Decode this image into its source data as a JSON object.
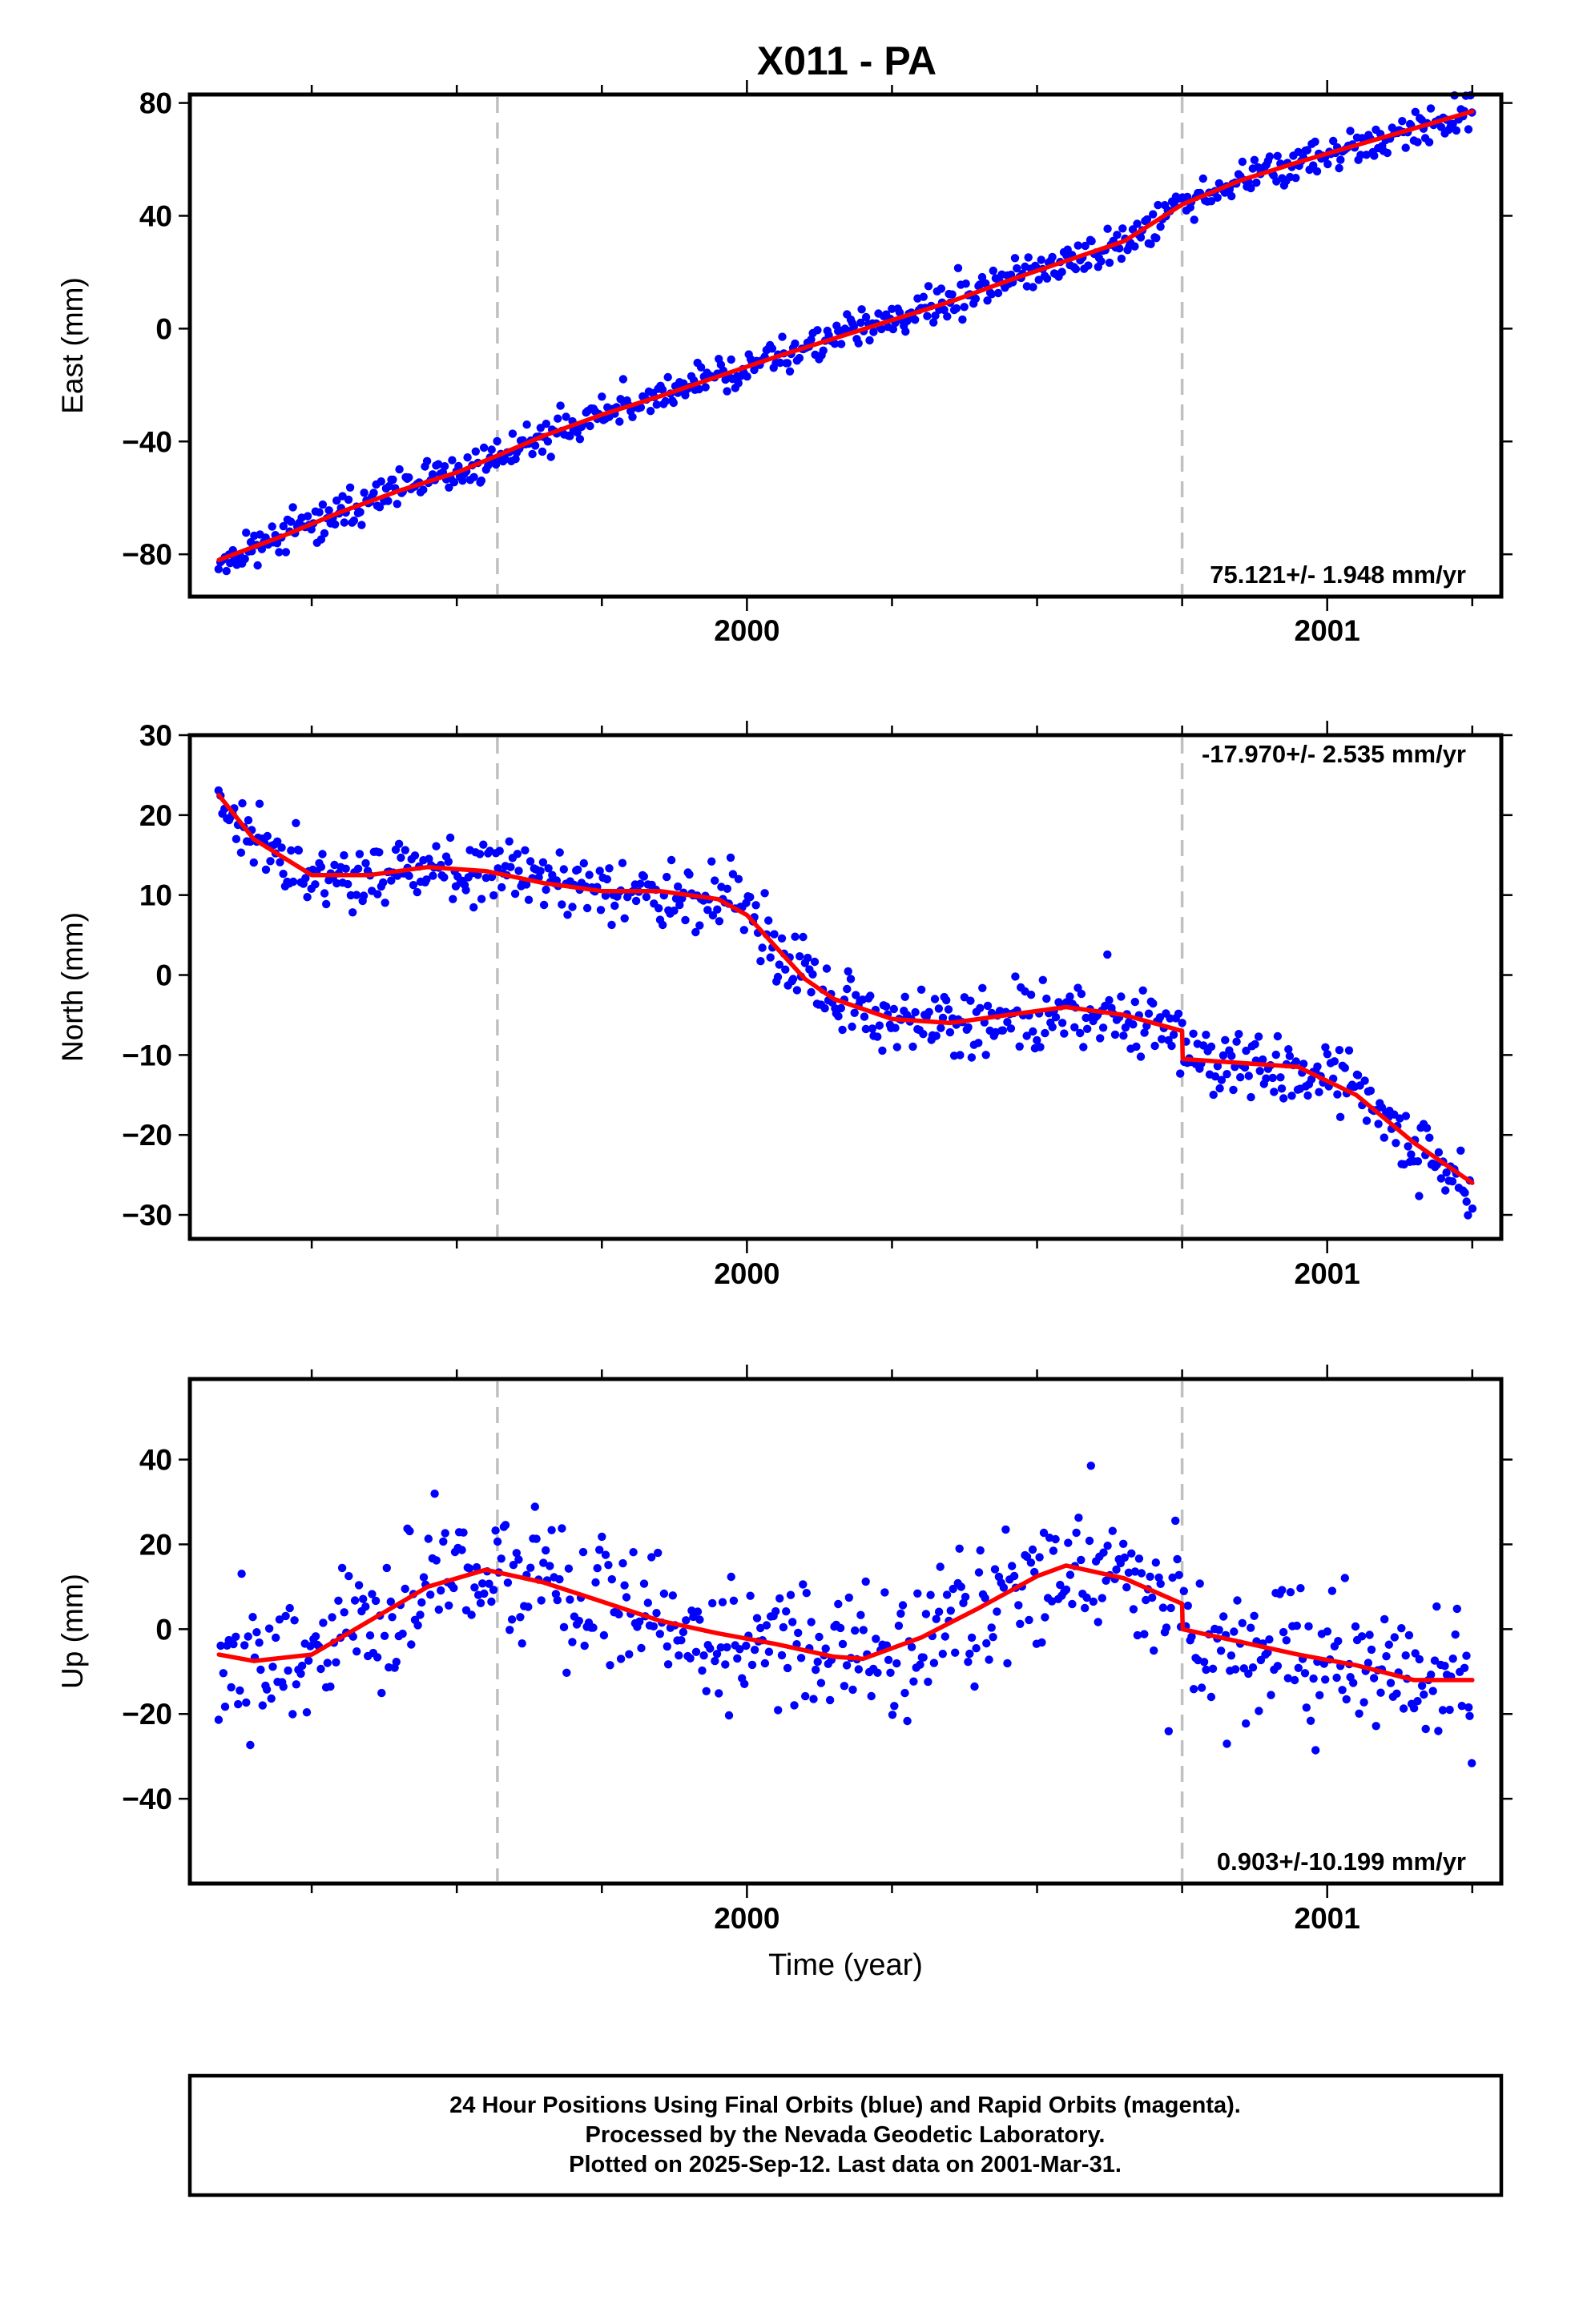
{
  "title": "X011 - PA",
  "footer": {
    "lines": [
      "24 Hour Positions Using Final Orbits (blue) and Rapid Orbits (magenta).",
      "Processed by the Nevada Geodetic Laboratory.",
      "Plotted on 2025-Sep-12. Last data on 2001-Mar-31."
    ]
  },
  "colors": {
    "points": "#0000ff",
    "model": "#ff0000",
    "events": "#c0c0c0",
    "axes": "#000000"
  },
  "chart_data": [
    {
      "type": "scatter",
      "title": "X011 - PA",
      "ylabel": "East (mm)",
      "xlabel": "",
      "xlim": [
        1999.04,
        2001.3
      ],
      "ylim": [
        -95,
        83
      ],
      "xticks": [
        {
          "v": 2000,
          "label": "2000"
        },
        {
          "v": 2001,
          "label": "2001"
        }
      ],
      "yticks": [
        {
          "v": 80,
          "label": "80"
        },
        {
          "v": 40,
          "label": "40"
        },
        {
          "v": 0,
          "label": "0"
        },
        {
          "v": -40,
          "label": "−40"
        },
        {
          "v": -80,
          "label": "−80"
        }
      ],
      "event_lines": [
        1999.57,
        2000.75
      ],
      "rate_label": "75.121+/- 1.948 mm/yr",
      "rate_pos": "bottom-right",
      "model": {
        "x": [
          1999.09,
          1999.2,
          1999.3,
          1999.4,
          1999.5,
          1999.57,
          1999.65,
          1999.75,
          1999.85,
          1999.95,
          2000.05,
          2000.15,
          2000.25,
          2000.35,
          2000.45,
          2000.55,
          2000.65,
          2000.75,
          2000.85,
          2000.95,
          2001.05,
          2001.15,
          2001.25
        ],
        "y": [
          -82,
          -73.5,
          -65,
          -57.5,
          -51,
          -45,
          -38,
          -30.5,
          -24,
          -17,
          -10,
          -3.5,
          3,
          9.5,
          17,
          24,
          31,
          44,
          52.5,
          59,
          65,
          71,
          77
        ]
      },
      "points": {
        "count": 640,
        "x_start": 1999.09,
        "x_end": 2001.25,
        "scatter": 3.5,
        "outlier_rate": 0.03,
        "outlier_scale": 10,
        "seed": 11
      }
    },
    {
      "type": "scatter",
      "title": "",
      "ylabel": "North (mm)",
      "xlabel": "",
      "xlim": [
        1999.04,
        2001.3
      ],
      "ylim": [
        -33,
        30
      ],
      "xticks": [
        {
          "v": 2000,
          "label": "2000"
        },
        {
          "v": 2001,
          "label": "2001"
        }
      ],
      "yticks": [
        {
          "v": 30,
          "label": "30"
        },
        {
          "v": 20,
          "label": "20"
        },
        {
          "v": 10,
          "label": "10"
        },
        {
          "v": 0,
          "label": "0"
        },
        {
          "v": -10,
          "label": "−10"
        },
        {
          "v": -20,
          "label": "−20"
        },
        {
          "v": -30,
          "label": "−30"
        }
      ],
      "event_lines": [
        1999.57,
        2000.75
      ],
      "rate_label": "-17.970+/- 2.535 mm/yr",
      "rate_pos": "top-right",
      "model": {
        "x": [
          1999.09,
          1999.15,
          1999.25,
          1999.35,
          1999.45,
          1999.55,
          1999.65,
          1999.75,
          1999.85,
          1999.95,
          2000.0,
          2000.05,
          2000.1,
          2000.15,
          2000.25,
          2000.35,
          2000.45,
          2000.55,
          2000.65,
          2000.75,
          2000.751,
          2000.85,
          2000.95,
          2001.05,
          2001.15,
          2001.25
        ],
        "y": [
          22.5,
          17,
          12.5,
          12.5,
          13.5,
          13,
          11.5,
          10.5,
          10.5,
          9.5,
          7.5,
          3.5,
          -0.5,
          -3,
          -5.5,
          -6,
          -5,
          -4,
          -5,
          -7,
          -10.5,
          -11,
          -11.5,
          -15,
          -21,
          -26
        ]
      },
      "points": {
        "count": 640,
        "x_start": 1999.09,
        "x_end": 2001.25,
        "scatter": 2.2,
        "outlier_rate": 0.03,
        "outlier_scale": 8,
        "seed": 23
      }
    },
    {
      "type": "scatter",
      "title": "",
      "ylabel": "Up (mm)",
      "xlabel": "Time (year)",
      "xlim": [
        1999.04,
        2001.3
      ],
      "ylim": [
        -60,
        59
      ],
      "xticks": [
        {
          "v": 2000,
          "label": "2000"
        },
        {
          "v": 2001,
          "label": "2001"
        }
      ],
      "yticks": [
        {
          "v": 40,
          "label": "40"
        },
        {
          "v": 20,
          "label": "20"
        },
        {
          "v": 0,
          "label": "0"
        },
        {
          "v": -20,
          "label": "−20"
        },
        {
          "v": -40,
          "label": "−40"
        }
      ],
      "event_lines": [
        1999.57,
        2000.75
      ],
      "rate_label": "0.903+/-10.199 mm/yr",
      "rate_pos": "bottom-right",
      "model": {
        "x": [
          1999.09,
          1999.15,
          1999.25,
          1999.35,
          1999.45,
          1999.55,
          1999.65,
          1999.75,
          1999.85,
          1999.95,
          2000.05,
          2000.15,
          2000.2,
          2000.3,
          2000.4,
          2000.5,
          2000.55,
          2000.65,
          2000.75,
          2000.751,
          2000.85,
          2000.95,
          2001.05,
          2001.15,
          2001.25
        ],
        "y": [
          -6,
          -7.5,
          -6,
          2,
          10,
          14,
          11,
          6.5,
          2,
          -1,
          -3.5,
          -6.5,
          -7,
          -2,
          5,
          12.5,
          15,
          12,
          6,
          0,
          -3,
          -6,
          -8.5,
          -12,
          -12
        ]
      },
      "points": {
        "count": 600,
        "x_start": 1999.09,
        "x_end": 2001.25,
        "scatter": 8.5,
        "outlier_rate": 0.05,
        "outlier_scale": 22,
        "seed": 37
      }
    }
  ]
}
